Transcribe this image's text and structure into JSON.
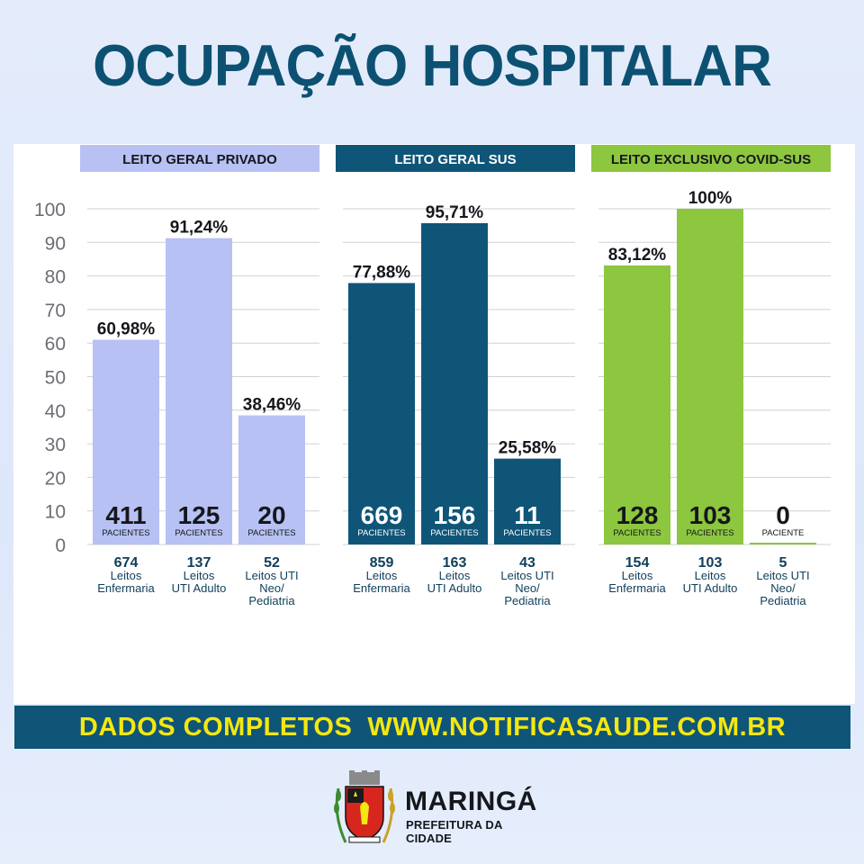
{
  "title": "OCUPAÇÃO HOSPITALAR",
  "footer": {
    "text": "DADOS COMPLETOS  WWW.NOTIFICASAUDE.COM.BR",
    "text_color": "#f5e70f",
    "bg_color": "#0f5578"
  },
  "logo": {
    "city": "MARINGÁ",
    "subtitle": "PREFEITURA DA CIDADE"
  },
  "chart_data": {
    "type": "bar",
    "ylim": [
      0,
      100
    ],
    "yticks": [
      0,
      10,
      20,
      30,
      40,
      50,
      60,
      70,
      80,
      90,
      100
    ],
    "grid": true,
    "groups": [
      {
        "name": "LEITO GERAL PRIVADO",
        "header_bg": "#b7c1f3",
        "header_color": "#15171c",
        "bar_color": "#b7c1f3",
        "patient_color": "#15171c",
        "bars": [
          {
            "value": 60.98,
            "label": "60,98%",
            "patients": "411",
            "patients_label": "PACIENTES",
            "beds": "674",
            "bed_lines": [
              "Leitos",
              "Enfermaria"
            ]
          },
          {
            "value": 91.24,
            "label": "91,24%",
            "patients": "125",
            "patients_label": "PACIENTES",
            "beds": "137",
            "bed_lines": [
              "Leitos",
              "UTI Adulto"
            ]
          },
          {
            "value": 38.46,
            "label": "38,46%",
            "patients": "20",
            "patients_label": "PACIENTES",
            "beds": "52",
            "bed_lines": [
              "Leitos UTI",
              "Neo/",
              "Pediatria"
            ]
          }
        ]
      },
      {
        "name": "LEITO GERAL SUS",
        "header_bg": "#0f5578",
        "header_color": "#ffffff",
        "bar_color": "#0f5578",
        "patient_color": "#ffffff",
        "bars": [
          {
            "value": 77.88,
            "label": "77,88%",
            "patients": "669",
            "patients_label": "PACIENTES",
            "beds": "859",
            "bed_lines": [
              "Leitos",
              "Enfermaria"
            ]
          },
          {
            "value": 95.71,
            "label": "95,71%",
            "patients": "156",
            "patients_label": "PACIENTES",
            "beds": "163",
            "bed_lines": [
              "Leitos",
              "UTI Adulto"
            ]
          },
          {
            "value": 25.58,
            "label": "25,58%",
            "patients": "11",
            "patients_label": "PACIENTES",
            "beds": "43",
            "bed_lines": [
              "Leitos UTI",
              "Neo/",
              "Pediatria"
            ]
          }
        ]
      },
      {
        "name": "LEITO EXCLUSIVO COVID-SUS",
        "header_bg": "#8dc63f",
        "header_color": "#15171c",
        "bar_color": "#8dc63f",
        "patient_color": "#15171c",
        "bars": [
          {
            "value": 83.12,
            "label": "83,12%",
            "patients": "128",
            "patients_label": "PACIENTES",
            "beds": "154",
            "bed_lines": [
              "Leitos",
              "Enfermaria"
            ]
          },
          {
            "value": 100,
            "label": "100%",
            "patients": "103",
            "patients_label": "PACIENTES",
            "beds": "103",
            "bed_lines": [
              "Leitos",
              "UTI Adulto"
            ]
          },
          {
            "value": 0,
            "label": "",
            "patients": "0",
            "patients_label": "PACIENTE",
            "beds": "5",
            "bed_lines": [
              "Leitos UTI",
              "Neo/",
              "Pediatria"
            ]
          }
        ]
      }
    ]
  }
}
